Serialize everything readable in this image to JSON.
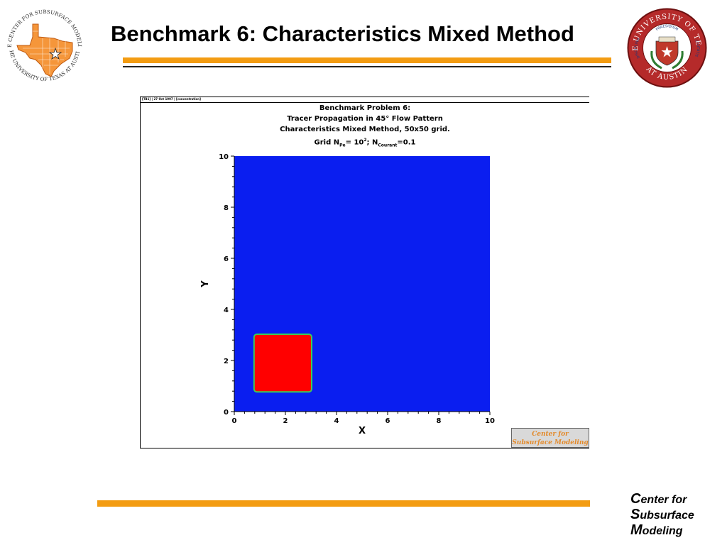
{
  "slide": {
    "title": "Benchmark 6: Characteristics Mixed Method",
    "left_logo_text_top": "THE CENTER FOR SUBSURFACE MODELING",
    "left_logo_text_bottom": "THE UNIVERSITY OF TEXAS AT AUSTIN",
    "seal_text_top": "THE UNIVERSITY OF TEXAS",
    "seal_text_bottom": "AT AUSTIN",
    "seal_motto_left": "DISCIPLINA",
    "seal_motto_top": "PRAESIDIUM",
    "seal_motto_right": "CIVITATIS",
    "footer": {
      "line1_cap": "C",
      "line1_rest": "enter for",
      "line2_cap": "S",
      "line2_rest": "ubsurface",
      "line3_cap": "M",
      "line3_rest": "odeling"
    },
    "colors": {
      "orange": "#f39c12",
      "maroon": "#a31f24"
    }
  },
  "figure": {
    "header_left": "[TB1]",
    "header_mid": "27 Oct 1997",
    "header_right": "[concentration]",
    "title_line1": "Benchmark Problem 6:",
    "title_line2": "Tracer Propagation in 45° Flow Pattern",
    "title_line3": "Characteristics Mixed Method, 50x50 grid.",
    "grid_prefix": "Grid N",
    "grid_sub1": "Pe",
    "grid_mid": "= 10",
    "grid_sup": "2",
    "grid_sep": "; N",
    "grid_sub2": "Courant",
    "grid_end": "=0.1",
    "badge_line1": "Center for",
    "badge_line2": "Subsurface Modeling"
  },
  "chart_data": {
    "type": "heatmap",
    "title": "Benchmark Problem 6: Tracer Propagation in 45° Flow Pattern",
    "xlabel": "X",
    "ylabel": "Y",
    "xlim": [
      0,
      10
    ],
    "ylim": [
      0,
      10
    ],
    "x_ticks": [
      "0",
      "2",
      "4",
      "6",
      "8",
      "10"
    ],
    "y_ticks": [
      "0",
      "2",
      "4",
      "6",
      "8",
      "10"
    ],
    "background_value": 0,
    "background_color": "#0a1ef0",
    "regions": [
      {
        "name": "tracer",
        "x": [
          0.8,
          3.0
        ],
        "y": [
          0.8,
          3.0
        ],
        "value": 1,
        "color": "#ff0000",
        "edge_color": "#3ecc55"
      }
    ],
    "grid": false
  }
}
